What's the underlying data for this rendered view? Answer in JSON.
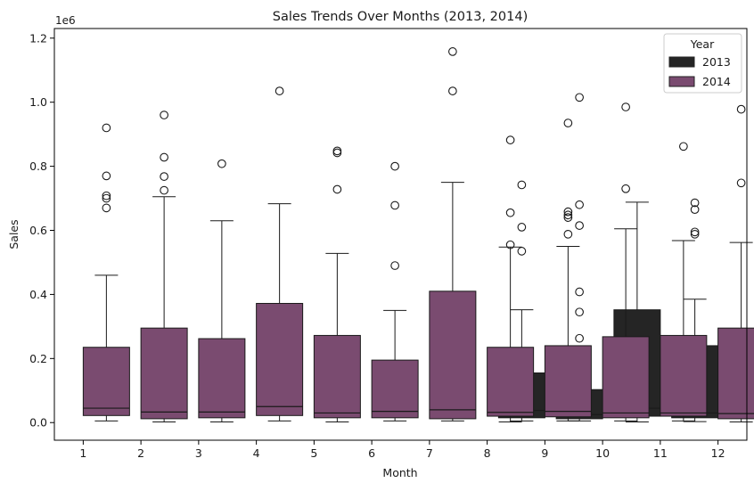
{
  "chart_data": {
    "type": "box",
    "title": "Sales Trends Over Months (2013, 2014)",
    "xlabel": "Month",
    "ylabel": "Sales",
    "y_scale_label": "1e6",
    "ylim": [
      -55000,
      1230000
    ],
    "yticks": [
      0,
      200000,
      400000,
      600000,
      800000,
      1000000,
      1200000
    ],
    "ytick_labels": [
      "0.0",
      "0.2",
      "0.4",
      "0.6",
      "0.8",
      "1.0",
      "1.2"
    ],
    "categories": [
      "1",
      "2",
      "3",
      "4",
      "5",
      "6",
      "7",
      "8",
      "9",
      "10",
      "11",
      "12"
    ],
    "legend": {
      "title": "Year",
      "position": "top-right"
    },
    "series": [
      {
        "name": "2013",
        "color": "#252525",
        "boxes": [
          null,
          null,
          null,
          null,
          null,
          null,
          null,
          null,
          {
            "whislo": 5000,
            "q1": 15000,
            "med": 38000,
            "q3": 155000,
            "whishi": 352000,
            "fliers": [
              535000,
              610000,
              742000
            ]
          },
          {
            "whislo": 5000,
            "q1": 12000,
            "med": 25000,
            "q3": 103000,
            "whishi": 237000,
            "fliers": [
              263000,
              345000,
              408000,
              615000,
              680000,
              1015000
            ]
          },
          {
            "whislo": 2000,
            "q1": 20000,
            "med": 45000,
            "q3": 352000,
            "whishi": 688000,
            "fliers": []
          },
          {
            "whislo": 3000,
            "q1": 15000,
            "med": 30000,
            "q3": 240000,
            "whishi": 385000,
            "fliers": [
              588000,
              595000,
              665000,
              686000
            ]
          }
        ]
      },
      {
        "name": "2014",
        "color": "#7a4b70",
        "boxes": [
          {
            "whislo": 5000,
            "q1": 22000,
            "med": 45000,
            "q3": 235000,
            "whishi": 460000,
            "fliers": [
              670000,
              700000,
              708000,
              770000,
              920000
            ]
          },
          {
            "whislo": 2000,
            "q1": 12000,
            "med": 33000,
            "q3": 295000,
            "whishi": 705000,
            "fliers": [
              725000,
              768000,
              828000,
              960000
            ]
          },
          {
            "whislo": 2000,
            "q1": 15000,
            "med": 33000,
            "q3": 262000,
            "whishi": 630000,
            "fliers": [
              808000
            ]
          },
          {
            "whislo": 5000,
            "q1": 22000,
            "med": 50000,
            "q3": 372000,
            "whishi": 683000,
            "fliers": [
              1035000
            ]
          },
          {
            "whislo": 2000,
            "q1": 15000,
            "med": 30000,
            "q3": 272000,
            "whishi": 528000,
            "fliers": [
              728000,
              842000,
              848000
            ]
          },
          {
            "whislo": 5000,
            "q1": 15000,
            "med": 35000,
            "q3": 195000,
            "whishi": 350000,
            "fliers": [
              490000,
              678000,
              800000
            ]
          },
          {
            "whislo": 5000,
            "q1": 12000,
            "med": 40000,
            "q3": 410000,
            "whishi": 750000,
            "fliers": [
              1035000,
              1158000
            ]
          },
          {
            "whislo": 2000,
            "q1": 20000,
            "med": 32000,
            "q3": 235000,
            "whishi": 548000,
            "fliers": [
              555000,
              655000,
              882000
            ]
          },
          {
            "whislo": 5000,
            "q1": 18000,
            "med": 35000,
            "q3": 240000,
            "whishi": 550000,
            "fliers": [
              588000,
              640000,
              648000,
              658000,
              935000
            ]
          },
          {
            "whislo": 5000,
            "q1": 15000,
            "med": 30000,
            "q3": 268000,
            "whishi": 605000,
            "fliers": [
              730000,
              985000
            ]
          },
          {
            "whislo": 5000,
            "q1": 20000,
            "med": 30000,
            "q3": 272000,
            "whishi": 568000,
            "fliers": [
              862000
            ]
          },
          {
            "whislo": 2000,
            "q1": 12000,
            "med": 28000,
            "q3": 295000,
            "whishi": 562000,
            "fliers": [
              748000,
              978000
            ]
          }
        ]
      }
    ]
  }
}
